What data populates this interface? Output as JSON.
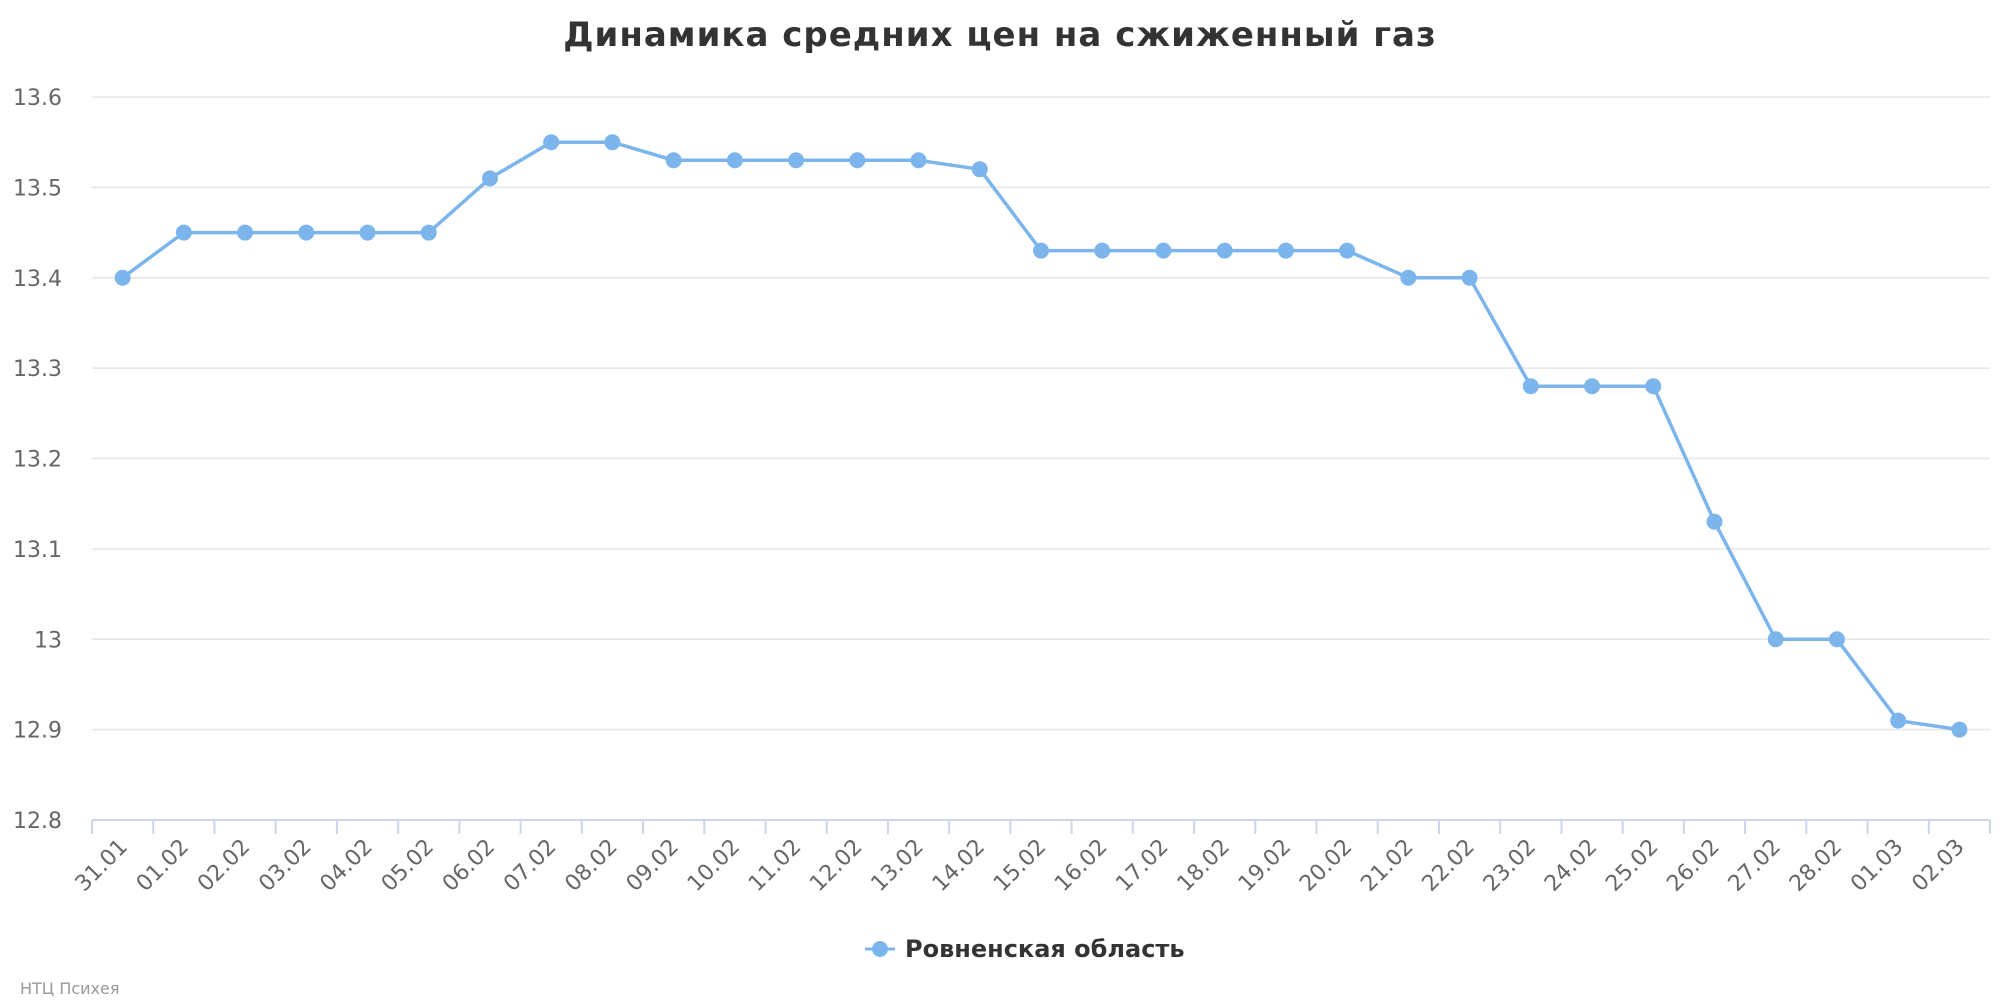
{
  "chart_data": {
    "type": "line",
    "title": "Динамика средних цен на сжиженный газ",
    "categories": [
      "31.01",
      "01.02",
      "02.02",
      "03.02",
      "04.02",
      "05.02",
      "06.02",
      "07.02",
      "08.02",
      "09.02",
      "10.02",
      "11.02",
      "12.02",
      "13.02",
      "14.02",
      "15.02",
      "16.02",
      "17.02",
      "18.02",
      "19.02",
      "20.02",
      "21.02",
      "22.02",
      "23.02",
      "24.02",
      "25.02",
      "26.02",
      "27.02",
      "28.02",
      "01.03",
      "02.03"
    ],
    "series": [
      {
        "name": "Ровненская область",
        "color": "#7cb5ec",
        "values": [
          13.4,
          13.45,
          13.45,
          13.45,
          13.45,
          13.45,
          13.51,
          13.55,
          13.55,
          13.53,
          13.53,
          13.53,
          13.53,
          13.53,
          13.52,
          13.43,
          13.43,
          13.43,
          13.43,
          13.43,
          13.43,
          13.4,
          13.4,
          13.28,
          13.28,
          13.28,
          13.13,
          13.0,
          13.0,
          12.91,
          12.9
        ]
      }
    ],
    "yticks": [
      "13.6",
      "13.5",
      "13.4",
      "13.3",
      "13.2",
      "13.1",
      "13",
      "12.9",
      "12.8"
    ],
    "ylim": [
      12.8,
      13.6
    ],
    "grid": true,
    "legend": "bottom-center"
  },
  "credits": "НТЦ Психея"
}
